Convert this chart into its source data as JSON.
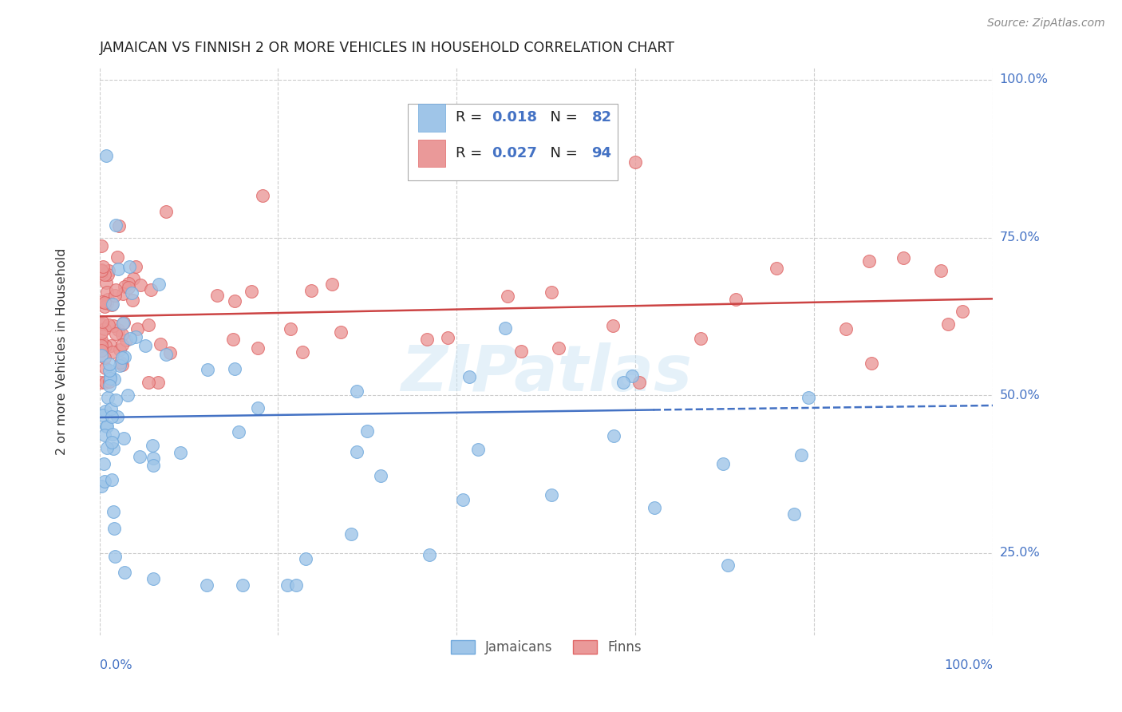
{
  "title": "JAMAICAN VS FINNISH 2 OR MORE VEHICLES IN HOUSEHOLD CORRELATION CHART",
  "source": "Source: ZipAtlas.com",
  "ylabel": "2 or more Vehicles in Household",
  "watermark": "ZIPatlas",
  "legend_r1": "0.018",
  "legend_n1": "82",
  "legend_r2": "0.027",
  "legend_n2": "94",
  "jamaican_color": "#9fc5e8",
  "finnish_color": "#ea9999",
  "jamaican_edge_color": "#6fa8dc",
  "finnish_edge_color": "#e06666",
  "jamaican_line_color": "#4472c4",
  "finnish_line_color": "#cc4444",
  "tick_color": "#4472c4",
  "title_color": "#222222",
  "source_color": "#888888",
  "ylabel_color": "#333333",
  "grid_color": "#cccccc",
  "background_color": "#ffffff",
  "xlim": [
    0.0,
    1.0
  ],
  "ylim": [
    0.12,
    1.02
  ],
  "ytick_positions": [
    0.25,
    0.5,
    0.75,
    1.0
  ],
  "ytick_labels": [
    "25.0%",
    "50.0%",
    "75.0%",
    "100.0%"
  ],
  "xtick_left_label": "0.0%",
  "xtick_right_label": "100.0%",
  "jam_line_x0": 0.0,
  "jam_line_x1": 0.62,
  "jam_line_x2": 1.0,
  "jam_line_y0": 0.465,
  "jam_line_y1": 0.477,
  "jam_line_y2": 0.484,
  "fin_line_x0": 0.0,
  "fin_line_x1": 1.0,
  "fin_line_y0": 0.625,
  "fin_line_y1": 0.653
}
